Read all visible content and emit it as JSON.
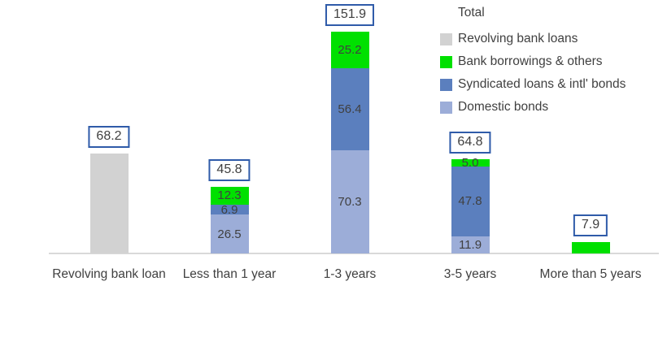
{
  "legend": {
    "title": "Total",
    "items": [
      {
        "label": "Revolving bank loans",
        "color": "#d2d2d2"
      },
      {
        "label": "Bank borrowings & others",
        "color": "#00e000"
      },
      {
        "label": "Syndicated loans & intl' bonds",
        "color": "#5b7fbe"
      },
      {
        "label": "Domestic bonds",
        "color": "#9cadd8"
      }
    ]
  },
  "chart_data": {
    "type": "bar",
    "subtype": "stacked",
    "title": "",
    "xlabel": "",
    "ylabel": "",
    "grid": false,
    "legend_position": "top-right",
    "categories": [
      "Revolving bank loan",
      "Less than 1 year",
      "1-3 years",
      "3-5 years",
      "More than 5 years"
    ],
    "series": [
      {
        "name": "Domestic bonds",
        "color": "#9cadd8",
        "values": [
          0,
          26.5,
          70.3,
          11.9,
          0
        ],
        "labels": [
          null,
          "26.5",
          "70.3",
          "11.9",
          null
        ]
      },
      {
        "name": "Syndicated loans & intl' bonds",
        "color": "#5b7fbe",
        "values": [
          0,
          6.9,
          56.4,
          47.8,
          0
        ],
        "labels": [
          null,
          "6.9",
          "56.4",
          "47.8",
          null
        ]
      },
      {
        "name": "Bank borrowings & others",
        "color": "#00e000",
        "values": [
          0,
          12.3,
          25.2,
          5.0,
          7.9
        ],
        "labels": [
          null,
          "12.3",
          "25.2",
          "5.0",
          null
        ]
      },
      {
        "name": "Revolving bank loans",
        "color": "#d2d2d2",
        "values": [
          68.2,
          0,
          0,
          0,
          0
        ],
        "labels": [
          null,
          null,
          null,
          null,
          null
        ]
      }
    ],
    "totals": [
      68.2,
      45.8,
      151.9,
      64.8,
      7.9
    ],
    "totals_display": [
      "68.2",
      "45.8",
      "151.9",
      "64.8",
      "7.9"
    ],
    "colors": {
      "total_box_border": "#2f5ba9",
      "axis_line": "#d9d9d9",
      "text": "#404040"
    }
  }
}
